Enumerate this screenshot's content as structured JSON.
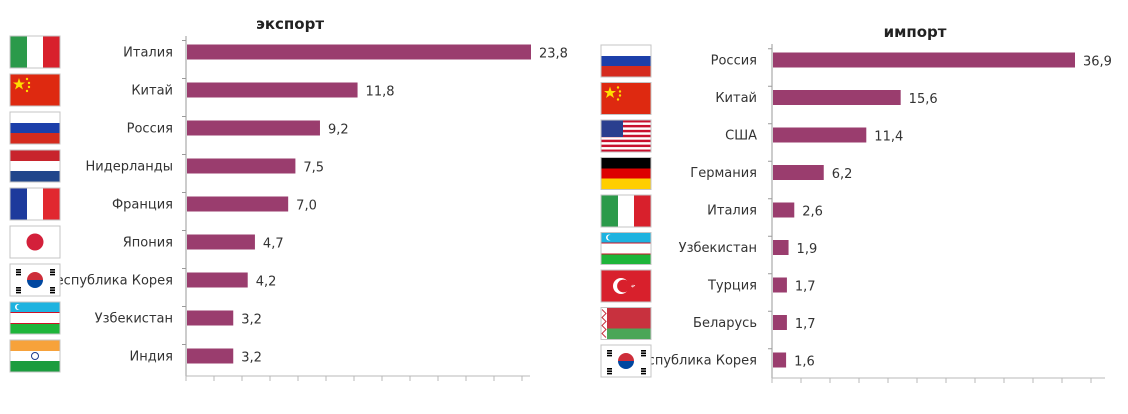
{
  "chart_data": [
    {
      "type": "bar",
      "title": "экспорт",
      "xlabel": "",
      "ylabel": "",
      "categories": [
        "Италия",
        "Китай",
        "Россия",
        "Нидерланды",
        "Франция",
        "Япония",
        "Республика Корея",
        "Узбекистан",
        "Индия"
      ],
      "values": [
        23.8,
        11.8,
        9.2,
        7.5,
        7.0,
        4.7,
        4.2,
        3.2,
        3.2
      ],
      "value_labels": [
        "23,8",
        "11,8",
        "9,2",
        "7,5",
        "7,0",
        "4,7",
        "4,2",
        "3,2",
        "3,2"
      ],
      "xlim": [
        0,
        25
      ],
      "bar_color": "#9a3d6e",
      "grid": false,
      "flags": [
        "italy",
        "china",
        "russia",
        "netherlands",
        "france",
        "japan",
        "south-korea",
        "uzbekistan",
        "india"
      ]
    },
    {
      "type": "bar",
      "title": "импорт",
      "xlabel": "",
      "ylabel": "",
      "categories": [
        "Россия",
        "Китай",
        "США",
        "Германия",
        "Италия",
        "Узбекистан",
        "Турция",
        "Беларусь",
        "Республика Корея"
      ],
      "values": [
        36.9,
        15.6,
        11.4,
        6.2,
        2.6,
        1.9,
        1.7,
        1.7,
        1.6
      ],
      "value_labels": [
        "36,9",
        "15,6",
        "11,4",
        "6,2",
        "2,6",
        "1,9",
        "1,7",
        "1,7",
        "1,6"
      ],
      "xlim": [
        0,
        40
      ],
      "bar_color": "#9a3d6e",
      "grid": false,
      "flags": [
        "russia",
        "china",
        "usa",
        "germany",
        "italy",
        "uzbekistan",
        "turkey",
        "belarus",
        "south-korea"
      ]
    }
  ]
}
